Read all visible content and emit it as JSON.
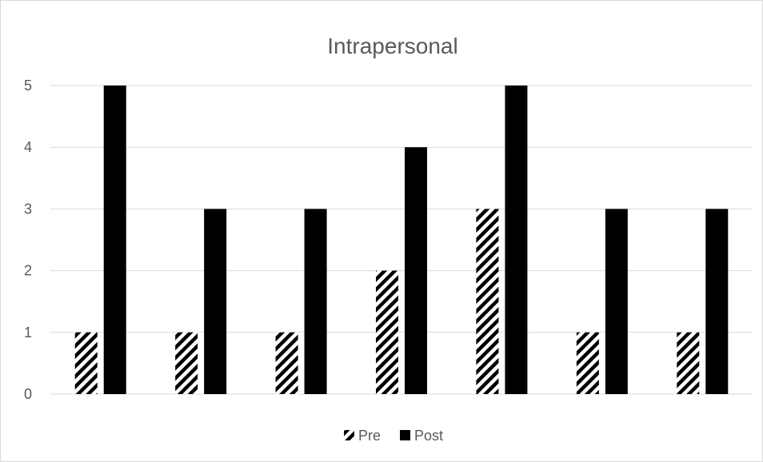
{
  "chart_data": {
    "type": "bar",
    "title": "Intrapersonal",
    "xlabel": "",
    "ylabel": "",
    "categories": [
      "",
      "",
      "",
      "",
      "",
      "",
      ""
    ],
    "series": [
      {
        "name": "Pre",
        "values": [
          1,
          1,
          1,
          2,
          3,
          1,
          1
        ],
        "fill": "diagonal-hatch",
        "color": "#000000"
      },
      {
        "name": "Post",
        "values": [
          5,
          3,
          3,
          4,
          5,
          3,
          3
        ],
        "fill": "solid",
        "color": "#000000"
      }
    ],
    "ylim": [
      0,
      5
    ],
    "yticks": [
      "0",
      "1",
      "2",
      "3",
      "4",
      "5"
    ],
    "grid": true,
    "legend_position": "bottom"
  }
}
